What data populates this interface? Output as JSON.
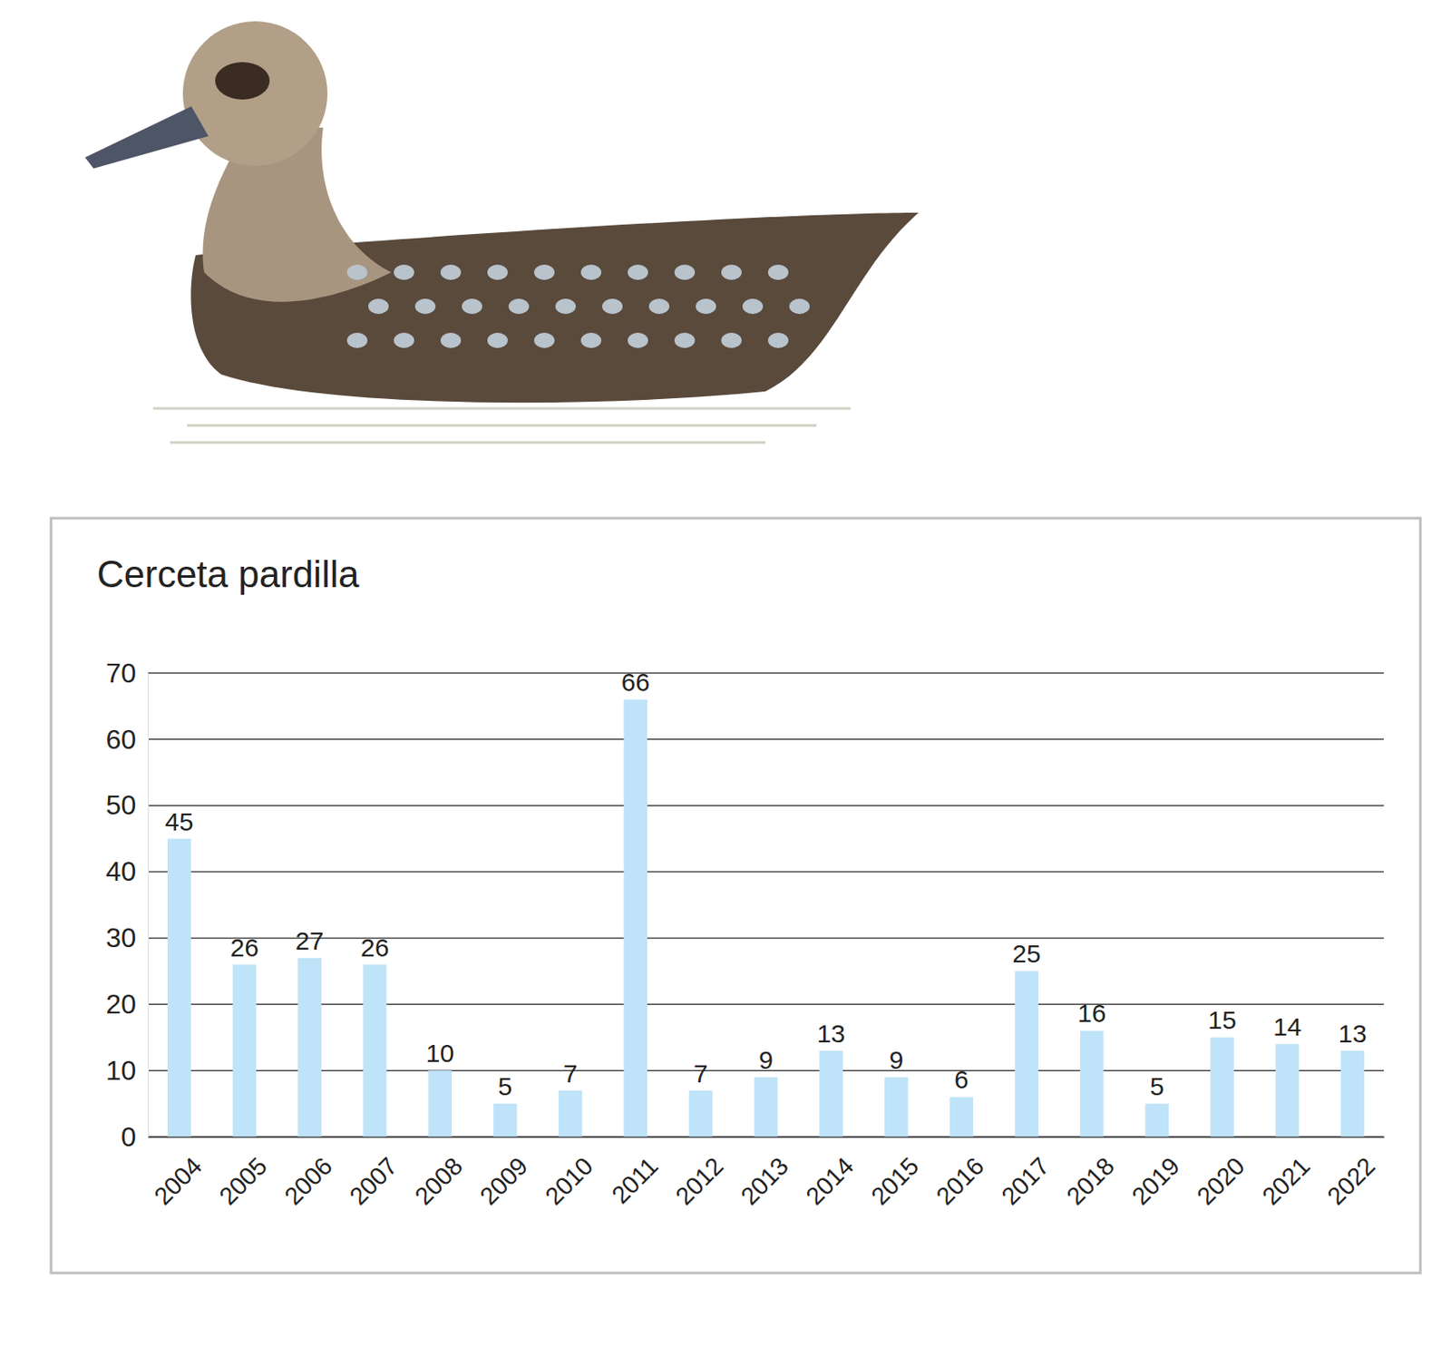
{
  "chart_data": {
    "type": "bar",
    "title": "Cerceta pardilla",
    "categories": [
      "2004",
      "2005",
      "2006",
      "2007",
      "2008",
      "2009",
      "2010",
      "2011",
      "2012",
      "2013",
      "2014",
      "2015",
      "2016",
      "2017",
      "2018",
      "2019",
      "2020",
      "2021",
      "2022"
    ],
    "values": [
      45,
      26,
      27,
      26,
      10,
      5,
      7,
      66,
      7,
      9,
      13,
      9,
      6,
      25,
      16,
      5,
      15,
      14,
      13
    ],
    "color": "#bfe3f8",
    "ylim": [
      0,
      70
    ],
    "yticks": [
      0,
      10,
      20,
      30,
      40,
      50,
      60,
      70
    ],
    "grid": true,
    "data_labels": true
  }
}
